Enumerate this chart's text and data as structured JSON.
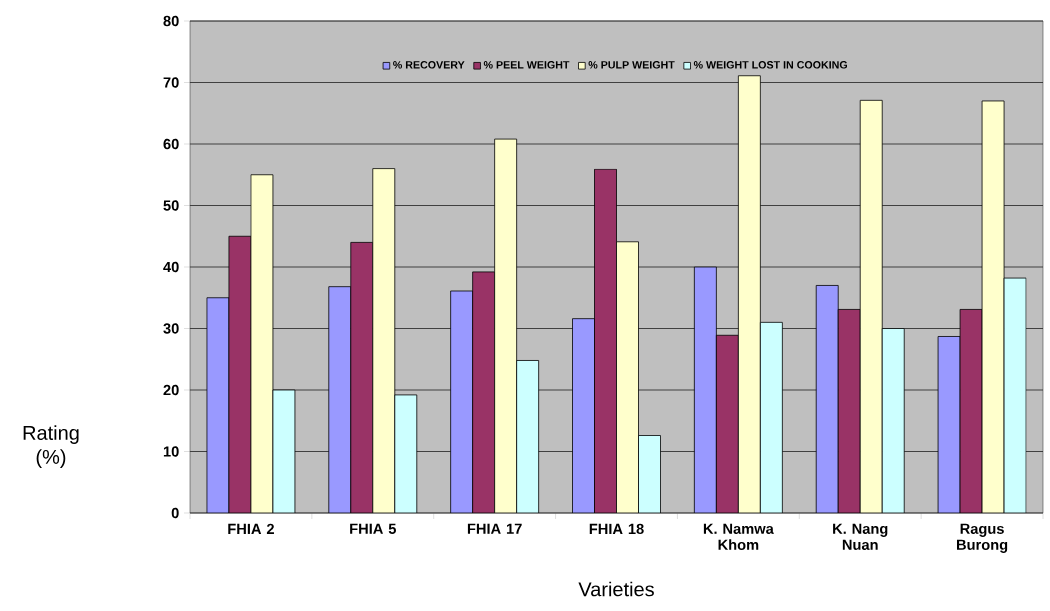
{
  "chart_data": {
    "type": "bar",
    "xlabel": "Varieties",
    "ylabel": "Rating (%)",
    "categories": [
      "FHIA 2",
      "FHIA 5",
      "FHIA 17",
      "FHIA 18",
      "K. Namwa Khom",
      "K. Nang Nuan",
      "Ragus Burong"
    ],
    "series": [
      {
        "name": "% RECOVERY",
        "color": "#9999ff",
        "values": [
          35.0,
          36.8,
          36.1,
          31.6,
          40.0,
          37.0,
          28.7
        ]
      },
      {
        "name": "% PEEL WEIGHT",
        "color": "#993366",
        "values": [
          45.0,
          44.0,
          39.2,
          55.9,
          28.9,
          33.1,
          33.1
        ]
      },
      {
        "name": "% PULP WEIGHT",
        "color": "#ffffcc",
        "values": [
          55.0,
          56.0,
          60.8,
          44.1,
          71.1,
          67.1,
          67.0
        ]
      },
      {
        "name": "% WEIGHT LOST IN COOKING",
        "color": "#ccffff",
        "values": [
          20.0,
          19.2,
          24.8,
          12.6,
          31.0,
          30.0,
          38.2
        ]
      }
    ],
    "ylim": [
      0,
      80
    ],
    "yticks": [
      0,
      10,
      20,
      30,
      40,
      50,
      60,
      70,
      80
    ],
    "grid": "y",
    "legend": "top"
  }
}
